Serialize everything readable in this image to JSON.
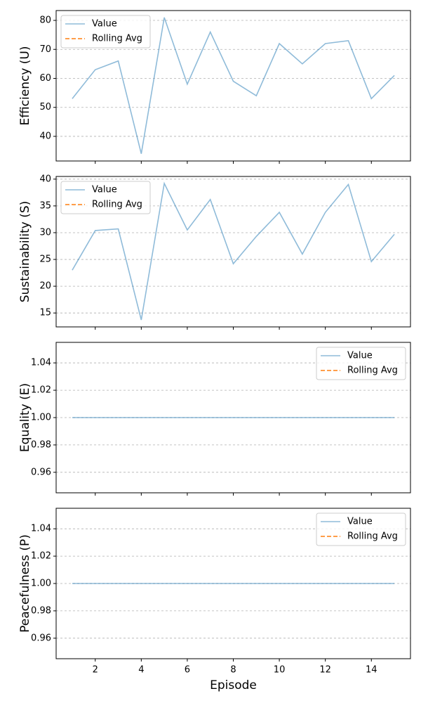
{
  "chart_data": [
    {
      "type": "line",
      "ylabel": "Efficiency (U)",
      "x": [
        1,
        2,
        3,
        4,
        5,
        6,
        7,
        8,
        9,
        10,
        11,
        12,
        13,
        14,
        15
      ],
      "series": [
        {
          "name": "Value",
          "color": "#1f77b4",
          "values": [
            53,
            63,
            66,
            34,
            81,
            58,
            76,
            59,
            54,
            72,
            65,
            72,
            73,
            53,
            61
          ]
        },
        {
          "name": "Rolling Avg",
          "color": "#ff7f0e",
          "values": [
            null,
            null,
            null,
            null,
            null,
            null,
            null,
            null,
            null,
            null,
            null,
            null,
            null,
            null,
            null
          ]
        }
      ],
      "xlim": [
        0.3,
        15.7
      ],
      "xticks": [
        2,
        4,
        6,
        8,
        10,
        12,
        14
      ],
      "ylim": [
        31.5,
        83.4
      ],
      "yticks": [
        40,
        50,
        60,
        70,
        80
      ],
      "grid": true,
      "legend": "upper left"
    },
    {
      "type": "line",
      "ylabel": "Sustainability (S)",
      "x": [
        1,
        2,
        3,
        4,
        5,
        6,
        7,
        8,
        9,
        10,
        11,
        12,
        13,
        14,
        15
      ],
      "series": [
        {
          "name": "Value",
          "color": "#1f77b4",
          "values": [
            23.0,
            30.4,
            30.7,
            13.7,
            39.2,
            30.5,
            36.2,
            24.2,
            29.3,
            33.8,
            26.0,
            33.8,
            39.0,
            24.6,
            29.7
          ]
        },
        {
          "name": "Rolling Avg",
          "color": "#ff7f0e",
          "values": [
            null,
            null,
            null,
            null,
            null,
            null,
            null,
            null,
            null,
            null,
            null,
            null,
            null,
            null,
            null
          ]
        }
      ],
      "xlim": [
        0.3,
        15.7
      ],
      "xticks": [
        2,
        4,
        6,
        8,
        10,
        12,
        14
      ],
      "ylim": [
        12.4,
        40.5
      ],
      "yticks": [
        15,
        20,
        25,
        30,
        35,
        40
      ],
      "grid": true,
      "legend": "upper left"
    },
    {
      "type": "line",
      "ylabel": "Equality (E)",
      "x": [
        1,
        2,
        3,
        4,
        5,
        6,
        7,
        8,
        9,
        10,
        11,
        12,
        13,
        14,
        15
      ],
      "series": [
        {
          "name": "Value",
          "color": "#1f77b4",
          "values": [
            1,
            1,
            1,
            1,
            1,
            1,
            1,
            1,
            1,
            1,
            1,
            1,
            1,
            1,
            1
          ]
        },
        {
          "name": "Rolling Avg",
          "color": "#ff7f0e",
          "values": [
            null,
            null,
            null,
            null,
            null,
            null,
            null,
            null,
            null,
            null,
            null,
            null,
            null,
            null,
            null
          ]
        }
      ],
      "xlim": [
        0.3,
        15.7
      ],
      "xticks": [
        2,
        4,
        6,
        8,
        10,
        12,
        14
      ],
      "ylim": [
        0.945,
        1.055
      ],
      "yticks": [
        0.96,
        0.98,
        {
          "value": 1,
          "label": "1.00"
        },
        1.02,
        1.04
      ],
      "grid": true,
      "legend": "upper right"
    },
    {
      "type": "line",
      "ylabel": "Peacefulness (P)",
      "xlabel": "Episode",
      "x": [
        1,
        2,
        3,
        4,
        5,
        6,
        7,
        8,
        9,
        10,
        11,
        12,
        13,
        14,
        15
      ],
      "series": [
        {
          "name": "Value",
          "color": "#1f77b4",
          "values": [
            1,
            1,
            1,
            1,
            1,
            1,
            1,
            1,
            1,
            1,
            1,
            1,
            1,
            1,
            1
          ]
        },
        {
          "name": "Rolling Avg",
          "color": "#ff7f0e",
          "values": [
            null,
            null,
            null,
            null,
            null,
            null,
            null,
            null,
            null,
            null,
            null,
            null,
            null,
            null,
            null
          ]
        }
      ],
      "xlim": [
        0.3,
        15.7
      ],
      "xticks": [
        2,
        4,
        6,
        8,
        10,
        12,
        14
      ],
      "ylim": [
        0.945,
        1.055
      ],
      "yticks": [
        0.96,
        0.98,
        {
          "value": 1,
          "label": "1.00"
        },
        1.02,
        1.04
      ],
      "grid": true,
      "legend": "upper right"
    }
  ]
}
